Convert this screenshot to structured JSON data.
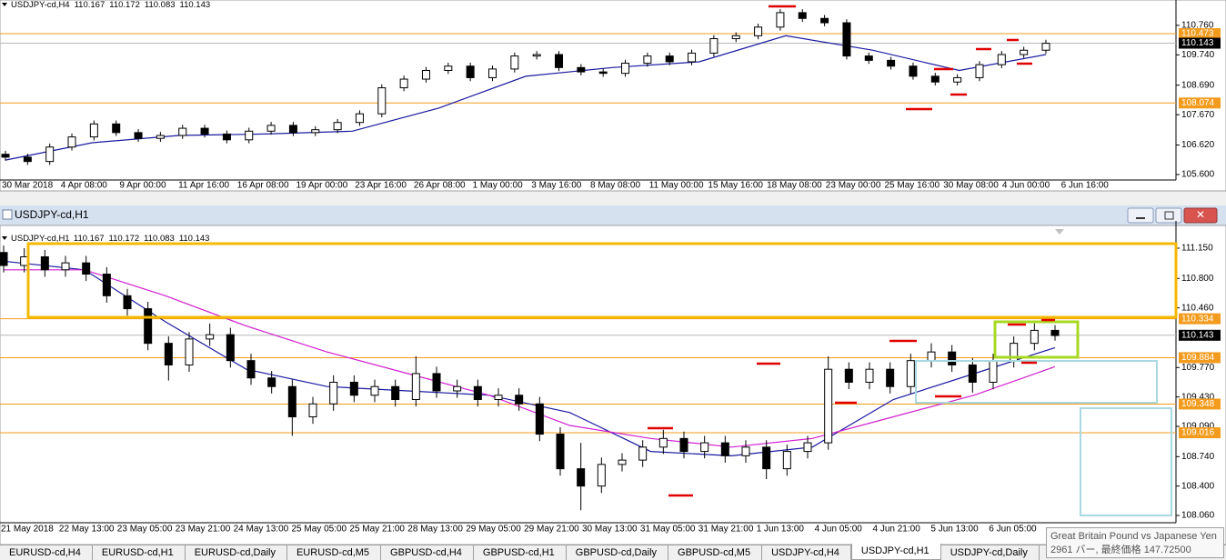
{
  "chart_data": [
    {
      "type": "candlestick",
      "header_symbol": "USDJPY-cd,H4",
      "header_prices": [
        110.167,
        110.172,
        110.083,
        110.143
      ],
      "ylim": [
        105.41,
        111.26
      ],
      "yticks": [
        {
          "value": 110.76,
          "label": "110.760"
        },
        {
          "value": 109.74,
          "label": "109.740"
        },
        {
          "value": 108.69,
          "label": "108.690"
        },
        {
          "value": 107.67,
          "label": "107.670"
        },
        {
          "value": 106.62,
          "label": "106.620"
        },
        {
          "value": 105.6,
          "label": "105.600"
        }
      ],
      "levels": [
        {
          "value": 110.473,
          "color": "#f29b1d",
          "line_color": "#f29b1d"
        },
        {
          "value": 110.143,
          "color": "#000000",
          "line_color": "#b8b8b8"
        },
        {
          "value": 108.074,
          "color": "#f29b1d",
          "line_color": "#f29b1d"
        }
      ],
      "xlabels": [
        "30 Mar 2018",
        "4 Apr 08:00",
        "9 Apr 00:00",
        "11 Apr 16:00",
        "16 Apr 08:00",
        "19 Apr 00:00",
        "23 Apr 16:00",
        "26 Apr 08:00",
        "1 May 00:00",
        "3 May 16:00",
        "8 May 08:00",
        "11 May 00:00",
        "15 May 16:00",
        "18 May 08:00",
        "23 May 00:00",
        "25 May 16:00",
        "30 May 08:00",
        "4 Jun 00:00",
        "6 Jun 16:00"
      ],
      "indicators": [
        {
          "color": "#1a1aa0",
          "values": [
            106.1,
            106.7,
            106.95,
            107.0,
            107.1,
            107.9,
            109.0,
            109.3,
            109.5,
            110.4,
            109.9,
            109.2,
            109.75
          ]
        }
      ],
      "ohlc": [
        [
          106.3,
          106.42,
          106.08,
          106.2
        ],
        [
          106.2,
          106.32,
          105.93,
          106.05
        ],
        [
          106.05,
          106.67,
          105.93,
          106.55
        ],
        [
          106.55,
          107.02,
          106.43,
          106.9
        ],
        [
          106.9,
          107.47,
          106.78,
          107.35
        ],
        [
          107.35,
          107.47,
          106.93,
          107.05
        ],
        [
          107.05,
          107.17,
          106.73,
          106.85
        ],
        [
          106.85,
          107.07,
          106.73,
          106.95
        ],
        [
          106.95,
          107.32,
          106.83,
          107.2
        ],
        [
          107.2,
          107.32,
          106.88,
          107.0
        ],
        [
          107.0,
          107.12,
          106.68,
          106.8
        ],
        [
          106.8,
          107.22,
          106.68,
          107.1
        ],
        [
          107.1,
          107.42,
          106.98,
          107.3
        ],
        [
          107.3,
          107.42,
          106.93,
          107.05
        ],
        [
          107.05,
          107.27,
          106.93,
          107.15
        ],
        [
          107.15,
          107.52,
          107.03,
          107.4
        ],
        [
          107.4,
          107.82,
          107.28,
          107.7
        ],
        [
          107.7,
          108.72,
          107.58,
          108.6
        ],
        [
          108.6,
          109.02,
          108.48,
          108.9
        ],
        [
          108.9,
          109.32,
          108.78,
          109.2
        ],
        [
          109.2,
          109.47,
          109.08,
          109.35
        ],
        [
          109.35,
          109.47,
          108.83,
          108.95
        ],
        [
          108.95,
          109.37,
          108.83,
          109.25
        ],
        [
          109.25,
          109.82,
          109.13,
          109.7
        ],
        [
          109.7,
          109.87,
          109.58,
          109.75
        ],
        [
          109.75,
          109.87,
          109.18,
          109.3
        ],
        [
          109.3,
          109.42,
          109.03,
          109.15
        ],
        [
          109.15,
          109.27,
          108.98,
          109.1
        ],
        [
          109.1,
          109.57,
          108.98,
          109.45
        ],
        [
          109.45,
          109.82,
          109.33,
          109.7
        ],
        [
          109.7,
          109.82,
          109.38,
          109.5
        ],
        [
          109.5,
          109.92,
          109.38,
          109.8
        ],
        [
          109.8,
          110.42,
          109.68,
          110.3
        ],
        [
          110.3,
          110.52,
          110.18,
          110.4
        ],
        [
          110.4,
          110.82,
          110.28,
          110.7
        ],
        [
          110.7,
          111.32,
          110.58,
          111.2
        ],
        [
          111.2,
          111.32,
          110.88,
          111.0
        ],
        [
          111.0,
          111.12,
          110.73,
          110.85
        ],
        [
          110.85,
          110.97,
          109.58,
          109.7
        ],
        [
          109.7,
          109.82,
          109.43,
          109.55
        ],
        [
          109.55,
          109.67,
          109.23,
          109.35
        ],
        [
          109.35,
          109.47,
          108.88,
          109.0
        ],
        [
          109.0,
          109.12,
          108.68,
          108.8
        ],
        [
          108.8,
          109.07,
          108.68,
          108.95
        ],
        [
          108.95,
          109.52,
          108.83,
          109.4
        ],
        [
          109.4,
          109.87,
          109.28,
          109.75
        ],
        [
          109.75,
          110.02,
          109.63,
          109.9
        ],
        [
          109.9,
          110.26,
          109.78,
          110.14
        ]
      ]
    },
    {
      "type": "candlestick",
      "header_symbol": "USDJPY-cd,H1",
      "header_prices": [
        110.167,
        110.172,
        110.083,
        110.143
      ],
      "ylim": [
        107.976,
        111.339
      ],
      "yticks": [
        {
          "value": 111.15,
          "label": "111.150"
        },
        {
          "value": 110.8,
          "label": "110.800"
        },
        {
          "value": 110.46,
          "label": "110.460"
        },
        {
          "value": 109.77,
          "label": "109.770"
        },
        {
          "value": 109.43,
          "label": "109.430"
        },
        {
          "value": 109.09,
          "label": "109.090"
        },
        {
          "value": 108.74,
          "label": "108.740"
        },
        {
          "value": 108.4,
          "label": "108.400"
        },
        {
          "value": 108.06,
          "label": "108.060"
        }
      ],
      "levels": [
        {
          "value": 110.334,
          "color": "#f29b1d",
          "line_color": "#f29b1d"
        },
        {
          "value": 110.143,
          "color": "#000000",
          "line_color": "#b8b8b8"
        },
        {
          "value": 109.884,
          "color": "#f29b1d",
          "line_color": "#f29b1d"
        },
        {
          "value": 109.348,
          "color": "#f29b1d",
          "line_color": "#f29b1d"
        },
        {
          "value": 109.016,
          "color": "#f29b1d",
          "line_color": "#f29b1d"
        }
      ],
      "xlabels": [
        "21 May 2018",
        "22 May 13:00",
        "23 May 05:00",
        "23 May 21:00",
        "24 May 13:00",
        "25 May 05:00",
        "25 May 21:00",
        "28 May 13:00",
        "29 May 05:00",
        "29 May 21:00",
        "30 May 13:00",
        "31 May 05:00",
        "31 May 21:00",
        "1 Jun 13:00",
        "4 Jun 05:00",
        "4 Jun 21:00",
        "5 Jun 13:00",
        "6 Jun 05:00"
      ],
      "indicators": [
        {
          "color": "#1a1aa0",
          "values": [
            111.0,
            110.9,
            110.3,
            109.75,
            109.55,
            109.5,
            109.45,
            109.25,
            108.8,
            108.75,
            108.85,
            109.4,
            109.7,
            110.0
          ]
        },
        {
          "color": "#d020d0",
          "values": [
            110.9,
            110.9,
            110.6,
            110.25,
            109.95,
            109.7,
            109.45,
            109.1,
            108.95,
            108.85,
            108.95,
            109.2,
            109.45,
            109.78
          ]
        }
      ],
      "ohlc": [
        [
          111.1,
          111.18,
          110.87,
          110.95
        ],
        [
          110.95,
          111.15,
          110.87,
          111.05
        ],
        [
          111.05,
          111.13,
          110.82,
          110.9
        ],
        [
          110.9,
          111.06,
          110.82,
          110.98
        ],
        [
          110.98,
          111.06,
          110.77,
          110.85
        ],
        [
          110.85,
          110.93,
          110.52,
          110.6
        ],
        [
          110.6,
          110.68,
          110.37,
          110.45
        ],
        [
          110.45,
          110.53,
          109.97,
          110.05
        ],
        [
          110.05,
          110.13,
          109.62,
          109.8
        ],
        [
          109.8,
          110.18,
          109.72,
          110.1
        ],
        [
          110.1,
          110.28,
          110.02,
          110.15
        ],
        [
          110.15,
          110.23,
          109.77,
          109.85
        ],
        [
          109.85,
          109.93,
          109.57,
          109.65
        ],
        [
          109.65,
          109.73,
          109.47,
          109.55
        ],
        [
          109.55,
          109.63,
          108.98,
          109.2
        ],
        [
          109.2,
          109.43,
          109.12,
          109.35
        ],
        [
          109.35,
          109.68,
          109.27,
          109.6
        ],
        [
          109.6,
          109.68,
          109.37,
          109.45
        ],
        [
          109.45,
          109.63,
          109.37,
          109.55
        ],
        [
          109.55,
          109.63,
          109.32,
          109.4
        ],
        [
          109.4,
          109.9,
          109.32,
          109.7
        ],
        [
          109.7,
          109.78,
          109.42,
          109.5
        ],
        [
          109.5,
          109.63,
          109.42,
          109.55
        ],
        [
          109.55,
          109.63,
          109.32,
          109.4
        ],
        [
          109.4,
          109.53,
          109.32,
          109.45
        ],
        [
          109.45,
          109.53,
          109.27,
          109.35
        ],
        [
          109.35,
          109.43,
          108.92,
          109.0
        ],
        [
          109.0,
          109.08,
          108.52,
          108.6
        ],
        [
          108.6,
          108.9,
          108.12,
          108.4
        ],
        [
          108.4,
          108.73,
          108.32,
          108.65
        ],
        [
          108.65,
          108.78,
          108.57,
          108.7
        ],
        [
          108.7,
          108.93,
          108.62,
          108.85
        ],
        [
          108.85,
          109.05,
          108.77,
          108.95
        ],
        [
          108.95,
          109.03,
          108.72,
          108.8
        ],
        [
          108.8,
          108.98,
          108.72,
          108.9
        ],
        [
          108.9,
          108.98,
          108.67,
          108.75
        ],
        [
          108.75,
          108.93,
          108.67,
          108.85
        ],
        [
          108.85,
          108.93,
          108.48,
          108.6
        ],
        [
          108.6,
          108.88,
          108.52,
          108.8
        ],
        [
          108.8,
          108.98,
          108.72,
          108.9
        ],
        [
          108.9,
          109.9,
          108.82,
          109.75
        ],
        [
          109.75,
          109.83,
          109.52,
          109.6
        ],
        [
          109.6,
          109.83,
          109.52,
          109.75
        ],
        [
          109.75,
          109.83,
          109.47,
          109.55
        ],
        [
          109.55,
          109.93,
          109.47,
          109.85
        ],
        [
          109.85,
          110.05,
          109.77,
          109.95
        ],
        [
          109.95,
          110.03,
          109.72,
          109.8
        ],
        [
          109.8,
          109.88,
          109.48,
          109.6
        ],
        [
          109.6,
          109.93,
          109.52,
          109.85
        ],
        [
          109.85,
          110.13,
          109.77,
          110.05
        ],
        [
          110.05,
          110.28,
          109.97,
          110.2
        ],
        [
          110.2,
          110.26,
          110.08,
          110.14
        ]
      ]
    }
  ],
  "window_title": "USDJPY-cd,H1",
  "tooltip": {
    "line1": "Great Britain Pound vs Japanese Yen",
    "line2": "2961 バー, 最終価格 147.72500"
  },
  "tabs": [
    "EURUSD-cd,H4",
    "EURUSD-cd,H1",
    "EURUSD-cd,Daily",
    "EURUSD-cd,M5",
    "GBPUSD-cd,H4",
    "GBPUSD-cd,H1",
    "GBPUSD-cd,Daily",
    "GBPUSD-cd,M5",
    "USDJPY-cd,H4",
    "USDJPY-cd,H1",
    "USDJPY-cd,Daily"
  ],
  "active_tab": 9
}
